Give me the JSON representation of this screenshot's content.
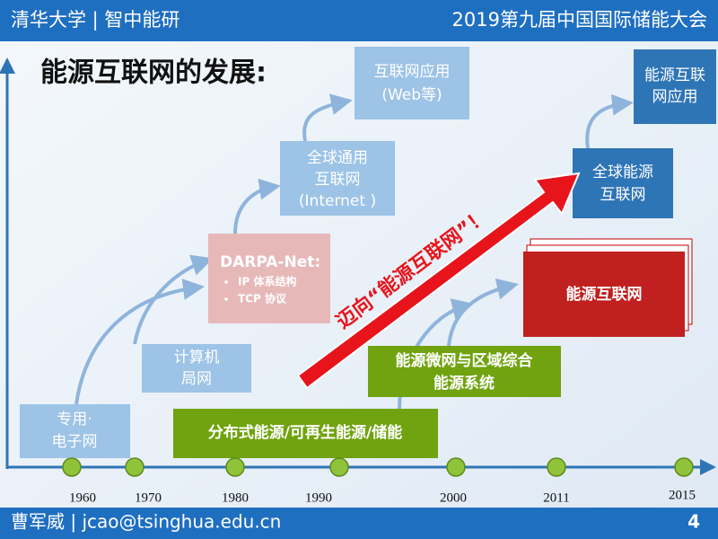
{
  "header": {
    "left": "清华大学 | 智中能研",
    "right": "2019第九届中国国际储能大会"
  },
  "title": "能源互联网的发展:",
  "timeline": {
    "years": [
      "1960",
      "1970",
      "1980",
      "1990",
      "2000",
      "2011",
      "2015"
    ]
  },
  "boxes": {
    "dedicated": [
      "专用·",
      "电子网"
    ],
    "lan": [
      "计算机",
      "局网"
    ],
    "darpa": {
      "title": "DARPA-Net:",
      "bullets": [
        "IP 体系结构",
        "TCP 协议"
      ]
    },
    "internet": [
      "全球通用",
      "互联网",
      "(Internet )"
    ],
    "web": [
      "互联网应用",
      "(Web等)"
    ],
    "global_energy": [
      "全球能源",
      "互联网"
    ],
    "energy_app": [
      "能源互联",
      "网应用"
    ],
    "energy_internet": "能源互联网",
    "microgrid": [
      "能源微网与区域综合",
      "能源系统"
    ],
    "distributed": "分布式能源/可再生能源/储能"
  },
  "arrow_label": "迈向“能源互联网”！",
  "footer": {
    "author": "曹军威 | jcao@tsinghua.edu.cn",
    "page": "4"
  }
}
